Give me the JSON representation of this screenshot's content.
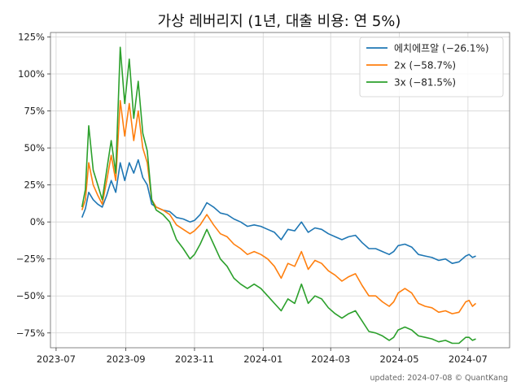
{
  "chart_data": {
    "type": "line",
    "title": "가상 레버리지 (1년, 대출 비용: 연 5%)",
    "footer": "updated: 2024-07-08 © QuantKang",
    "y_unit": "%",
    "ylim": [
      -85,
      128
    ],
    "xlim": [
      "2023-06-26",
      "2024-08-07"
    ],
    "yticks": [
      -75,
      -50,
      -25,
      0,
      25,
      50,
      75,
      100,
      125
    ],
    "yticklabels": [
      "−75%",
      "−50%",
      "−25%",
      "0%",
      "25%",
      "50%",
      "75%",
      "100%",
      "125%"
    ],
    "xticks": [
      "2023-07-01",
      "2023-09-01",
      "2023-11-01",
      "2024-01-01",
      "2024-03-01",
      "2024-05-01",
      "2024-07-01"
    ],
    "xticklabels": [
      "2023-07",
      "2023-09",
      "2023-11",
      "2024-01",
      "2024-03",
      "2024-05",
      "2024-07"
    ],
    "grid": true,
    "legend_position": "top-right",
    "series": [
      {
        "name": "에치에프알 (−26.1%)",
        "color": "#1f77b4",
        "points": [
          [
            "2023-07-24",
            3
          ],
          [
            "2023-07-27",
            9
          ],
          [
            "2023-07-30",
            20
          ],
          [
            "2023-08-03",
            15
          ],
          [
            "2023-08-07",
            12
          ],
          [
            "2023-08-11",
            10
          ],
          [
            "2023-08-15",
            18
          ],
          [
            "2023-08-19",
            28
          ],
          [
            "2023-08-23",
            20
          ],
          [
            "2023-08-27",
            40
          ],
          [
            "2023-08-31",
            28
          ],
          [
            "2023-09-04",
            40
          ],
          [
            "2023-09-08",
            33
          ],
          [
            "2023-09-12",
            42
          ],
          [
            "2023-09-16",
            30
          ],
          [
            "2023-09-20",
            25
          ],
          [
            "2023-09-24",
            12
          ],
          [
            "2023-09-28",
            10
          ],
          [
            "2023-10-04",
            8
          ],
          [
            "2023-10-10",
            7
          ],
          [
            "2023-10-16",
            3
          ],
          [
            "2023-10-22",
            2
          ],
          [
            "2023-10-28",
            0
          ],
          [
            "2023-11-01",
            1
          ],
          [
            "2023-11-06",
            5
          ],
          [
            "2023-11-12",
            13
          ],
          [
            "2023-11-18",
            10
          ],
          [
            "2023-11-24",
            6
          ],
          [
            "2023-11-30",
            5
          ],
          [
            "2023-12-06",
            2
          ],
          [
            "2023-12-12",
            0
          ],
          [
            "2023-12-18",
            -3
          ],
          [
            "2023-12-24",
            -2
          ],
          [
            "2023-12-30",
            -3
          ],
          [
            "2024-01-05",
            -5
          ],
          [
            "2024-01-11",
            -7
          ],
          [
            "2024-01-17",
            -12
          ],
          [
            "2024-01-23",
            -5
          ],
          [
            "2024-01-29",
            -6
          ],
          [
            "2024-02-04",
            0
          ],
          [
            "2024-02-10",
            -7
          ],
          [
            "2024-02-16",
            -4
          ],
          [
            "2024-02-22",
            -5
          ],
          [
            "2024-02-28",
            -8
          ],
          [
            "2024-03-05",
            -10
          ],
          [
            "2024-03-11",
            -12
          ],
          [
            "2024-03-17",
            -10
          ],
          [
            "2024-03-23",
            -9
          ],
          [
            "2024-03-29",
            -14
          ],
          [
            "2024-04-04",
            -18
          ],
          [
            "2024-04-10",
            -18
          ],
          [
            "2024-04-16",
            -20
          ],
          [
            "2024-04-22",
            -22
          ],
          [
            "2024-04-26",
            -20
          ],
          [
            "2024-04-30",
            -16
          ],
          [
            "2024-05-06",
            -15
          ],
          [
            "2024-05-12",
            -17
          ],
          [
            "2024-05-18",
            -22
          ],
          [
            "2024-05-24",
            -23
          ],
          [
            "2024-05-30",
            -24
          ],
          [
            "2024-06-05",
            -26
          ],
          [
            "2024-06-11",
            -25
          ],
          [
            "2024-06-17",
            -28
          ],
          [
            "2024-06-23",
            -27
          ],
          [
            "2024-06-29",
            -23
          ],
          [
            "2024-07-02",
            -22
          ],
          [
            "2024-07-05",
            -24
          ],
          [
            "2024-07-08",
            -23
          ]
        ]
      },
      {
        "name": "2x (−58.7%)",
        "color": "#ff7f0e",
        "points": [
          [
            "2023-07-24",
            8
          ],
          [
            "2023-07-27",
            15
          ],
          [
            "2023-07-30",
            40
          ],
          [
            "2023-08-03",
            25
          ],
          [
            "2023-08-07",
            18
          ],
          [
            "2023-08-11",
            12
          ],
          [
            "2023-08-15",
            28
          ],
          [
            "2023-08-19",
            45
          ],
          [
            "2023-08-23",
            28
          ],
          [
            "2023-08-27",
            82
          ],
          [
            "2023-08-31",
            58
          ],
          [
            "2023-09-04",
            80
          ],
          [
            "2023-09-08",
            55
          ],
          [
            "2023-09-12",
            75
          ],
          [
            "2023-09-16",
            50
          ],
          [
            "2023-09-20",
            40
          ],
          [
            "2023-09-24",
            15
          ],
          [
            "2023-09-28",
            10
          ],
          [
            "2023-10-04",
            8
          ],
          [
            "2023-10-10",
            5
          ],
          [
            "2023-10-16",
            -2
          ],
          [
            "2023-10-22",
            -5
          ],
          [
            "2023-10-28",
            -8
          ],
          [
            "2023-11-01",
            -6
          ],
          [
            "2023-11-06",
            -2
          ],
          [
            "2023-11-12",
            5
          ],
          [
            "2023-11-18",
            -2
          ],
          [
            "2023-11-24",
            -8
          ],
          [
            "2023-11-30",
            -10
          ],
          [
            "2023-12-06",
            -15
          ],
          [
            "2023-12-12",
            -18
          ],
          [
            "2023-12-18",
            -22
          ],
          [
            "2023-12-24",
            -20
          ],
          [
            "2023-12-30",
            -22
          ],
          [
            "2024-01-05",
            -25
          ],
          [
            "2024-01-11",
            -30
          ],
          [
            "2024-01-17",
            -38
          ],
          [
            "2024-01-23",
            -28
          ],
          [
            "2024-01-29",
            -30
          ],
          [
            "2024-02-04",
            -20
          ],
          [
            "2024-02-10",
            -32
          ],
          [
            "2024-02-16",
            -26
          ],
          [
            "2024-02-22",
            -28
          ],
          [
            "2024-02-28",
            -33
          ],
          [
            "2024-03-05",
            -36
          ],
          [
            "2024-03-11",
            -40
          ],
          [
            "2024-03-17",
            -37
          ],
          [
            "2024-03-23",
            -35
          ],
          [
            "2024-03-29",
            -43
          ],
          [
            "2024-04-04",
            -50
          ],
          [
            "2024-04-10",
            -50
          ],
          [
            "2024-04-16",
            -54
          ],
          [
            "2024-04-22",
            -57
          ],
          [
            "2024-04-26",
            -54
          ],
          [
            "2024-04-30",
            -48
          ],
          [
            "2024-05-06",
            -45
          ],
          [
            "2024-05-12",
            -48
          ],
          [
            "2024-05-18",
            -55
          ],
          [
            "2024-05-24",
            -57
          ],
          [
            "2024-05-30",
            -58
          ],
          [
            "2024-06-05",
            -61
          ],
          [
            "2024-06-11",
            -60
          ],
          [
            "2024-06-17",
            -62
          ],
          [
            "2024-06-23",
            -61
          ],
          [
            "2024-06-29",
            -54
          ],
          [
            "2024-07-02",
            -53
          ],
          [
            "2024-07-05",
            -57
          ],
          [
            "2024-07-08",
            -55
          ]
        ]
      },
      {
        "name": "3x (−81.5%)",
        "color": "#2ca02c",
        "points": [
          [
            "2023-07-24",
            10
          ],
          [
            "2023-07-27",
            22
          ],
          [
            "2023-07-30",
            65
          ],
          [
            "2023-08-03",
            35
          ],
          [
            "2023-08-07",
            25
          ],
          [
            "2023-08-11",
            15
          ],
          [
            "2023-08-15",
            35
          ],
          [
            "2023-08-19",
            55
          ],
          [
            "2023-08-23",
            33
          ],
          [
            "2023-08-27",
            118
          ],
          [
            "2023-08-31",
            80
          ],
          [
            "2023-09-04",
            110
          ],
          [
            "2023-09-08",
            70
          ],
          [
            "2023-09-12",
            95
          ],
          [
            "2023-09-16",
            60
          ],
          [
            "2023-09-20",
            48
          ],
          [
            "2023-09-24",
            15
          ],
          [
            "2023-09-28",
            8
          ],
          [
            "2023-10-04",
            5
          ],
          [
            "2023-10-10",
            0
          ],
          [
            "2023-10-16",
            -12
          ],
          [
            "2023-10-22",
            -18
          ],
          [
            "2023-10-28",
            -25
          ],
          [
            "2023-11-01",
            -22
          ],
          [
            "2023-11-06",
            -15
          ],
          [
            "2023-11-12",
            -5
          ],
          [
            "2023-11-18",
            -15
          ],
          [
            "2023-11-24",
            -25
          ],
          [
            "2023-11-30",
            -30
          ],
          [
            "2023-12-06",
            -38
          ],
          [
            "2023-12-12",
            -42
          ],
          [
            "2023-12-18",
            -45
          ],
          [
            "2023-12-24",
            -42
          ],
          [
            "2023-12-30",
            -45
          ],
          [
            "2024-01-05",
            -50
          ],
          [
            "2024-01-11",
            -55
          ],
          [
            "2024-01-17",
            -60
          ],
          [
            "2024-01-23",
            -52
          ],
          [
            "2024-01-29",
            -55
          ],
          [
            "2024-02-04",
            -42
          ],
          [
            "2024-02-10",
            -55
          ],
          [
            "2024-02-16",
            -50
          ],
          [
            "2024-02-22",
            -52
          ],
          [
            "2024-02-28",
            -58
          ],
          [
            "2024-03-05",
            -62
          ],
          [
            "2024-03-11",
            -65
          ],
          [
            "2024-03-17",
            -62
          ],
          [
            "2024-03-23",
            -60
          ],
          [
            "2024-03-29",
            -67
          ],
          [
            "2024-04-04",
            -74
          ],
          [
            "2024-04-10",
            -75
          ],
          [
            "2024-04-16",
            -77
          ],
          [
            "2024-04-22",
            -80
          ],
          [
            "2024-04-26",
            -78
          ],
          [
            "2024-04-30",
            -73
          ],
          [
            "2024-05-06",
            -71
          ],
          [
            "2024-05-12",
            -73
          ],
          [
            "2024-05-18",
            -77
          ],
          [
            "2024-05-24",
            -78
          ],
          [
            "2024-05-30",
            -79
          ],
          [
            "2024-06-05",
            -81
          ],
          [
            "2024-06-11",
            -80
          ],
          [
            "2024-06-17",
            -82
          ],
          [
            "2024-06-23",
            -82
          ],
          [
            "2024-06-29",
            -78
          ],
          [
            "2024-07-02",
            -78
          ],
          [
            "2024-07-05",
            -80
          ],
          [
            "2024-07-08",
            -79
          ]
        ]
      }
    ]
  }
}
